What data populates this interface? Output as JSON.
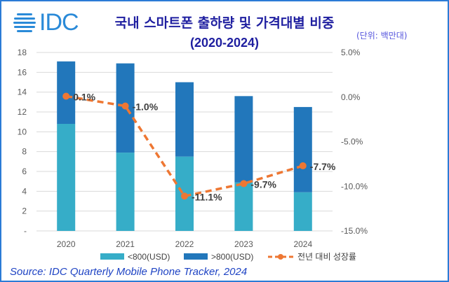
{
  "header": {
    "logo_text": "IDC",
    "title": "국내 스마트폰 출하량 및 가격대별 비중",
    "subtitle": "(2020-2024)",
    "unit": "(단위: 백만대)"
  },
  "source": "Source: IDC Quarterly Mobile Phone Tracker, 2024",
  "colors": {
    "low": "#36adc8",
    "high": "#2277bb",
    "growth": "#ee7733",
    "title": "#1f1fa0"
  },
  "chart_data": {
    "type": "bar",
    "stacked": true,
    "categories": [
      "2020",
      "2021",
      "2022",
      "2023",
      "2024"
    ],
    "series": [
      {
        "name": "<800(USD)",
        "values": [
          10.8,
          7.9,
          7.5,
          4.9,
          3.9
        ]
      },
      {
        "name": ">800(USD)",
        "values": [
          6.3,
          9.0,
          7.5,
          8.7,
          8.6
        ]
      }
    ],
    "line_series": {
      "name": "전년 대비 성장률",
      "values": [
        0.1,
        -1.0,
        -11.1,
        -9.7,
        -7.7
      ],
      "labels": [
        "0.1%",
        "-1.0%",
        "-11.1%",
        "-9.7%",
        "-7.7%"
      ],
      "style": "dashed",
      "axis": "right"
    },
    "ylim": [
      0,
      18
    ],
    "y_ticks": [
      "-",
      "2",
      "4",
      "6",
      "8",
      "10",
      "12",
      "14",
      "16",
      "18"
    ],
    "y2lim": [
      -15,
      5
    ],
    "y2_ticks": [
      "-15.0%",
      "-10.0%",
      "-5.0%",
      "0.0%",
      "5.0%"
    ],
    "grid": true,
    "legend": "bottom"
  }
}
